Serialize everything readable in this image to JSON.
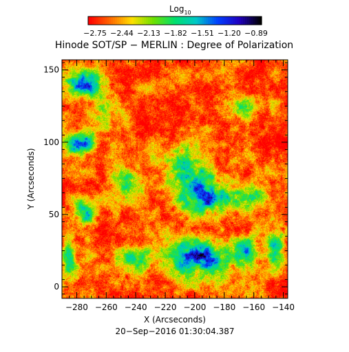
{
  "chart_data": {
    "type": "heatmap",
    "title": "Hinode SOT/SP − MERLIN : Degree of Polarization",
    "xlabel": "X (Arcseconds)",
    "ylabel": "Y (Arcseconds)",
    "date": "20−Sep−2016 01:30:04.387",
    "xlim": [
      -290,
      -137
    ],
    "ylim": [
      -8,
      157
    ],
    "x_ticks": [
      "−280",
      "−260",
      "−240",
      "−220",
      "−200",
      "−180",
      "−160",
      "−140"
    ],
    "y_ticks": [
      "0",
      "50",
      "100",
      "150"
    ],
    "colorbar": {
      "title": "Log",
      "title_sub": "10",
      "scale": "log10",
      "range": [
        -2.9,
        -0.8
      ],
      "ticks": [
        "−2.75",
        "−2.44",
        "−2.13",
        "−1.82",
        "−1.51",
        "−1.20",
        "−0.89"
      ],
      "colormap": [
        "#ff0000",
        "#ff6a00",
        "#ffe000",
        "#6ee000",
        "#00e06e",
        "#00c8c8",
        "#0040ff",
        "#2000c0",
        "#000000"
      ]
    },
    "field": {
      "background_level": -2.7,
      "feature_level": -1.3,
      "features": [
        {
          "x": -196,
          "y": 20,
          "rx": 20,
          "ry": 13,
          "strength": 1.0
        },
        {
          "x": -192,
          "y": 64,
          "rx": 18,
          "ry": 13,
          "strength": 0.95
        },
        {
          "x": -208,
          "y": 85,
          "rx": 13,
          "ry": 11,
          "strength": 0.75
        },
        {
          "x": -278,
          "y": 99,
          "rx": 9,
          "ry": 7,
          "strength": 1.0
        },
        {
          "x": -245,
          "y": 72,
          "rx": 9,
          "ry": 9,
          "strength": 0.75
        },
        {
          "x": -275,
          "y": 140,
          "rx": 14,
          "ry": 9,
          "strength": 0.7
        },
        {
          "x": -275,
          "y": 50,
          "rx": 8,
          "ry": 11,
          "strength": 0.7
        },
        {
          "x": -145,
          "y": 30,
          "rx": 6,
          "ry": 14,
          "strength": 0.6
        },
        {
          "x": -165,
          "y": 25,
          "rx": 9,
          "ry": 10,
          "strength": 0.6
        },
        {
          "x": -240,
          "y": 20,
          "rx": 14,
          "ry": 9,
          "strength": 0.55
        },
        {
          "x": -170,
          "y": 125,
          "rx": 14,
          "ry": 7,
          "strength": 0.45
        },
        {
          "x": -160,
          "y": 62,
          "rx": 10,
          "ry": 8,
          "strength": 0.55
        },
        {
          "x": -285,
          "y": 20,
          "rx": 5,
          "ry": 15,
          "strength": 0.6
        },
        {
          "x": -260,
          "y": 120,
          "rx": 12,
          "ry": 9,
          "strength": 0.4
        }
      ]
    }
  }
}
